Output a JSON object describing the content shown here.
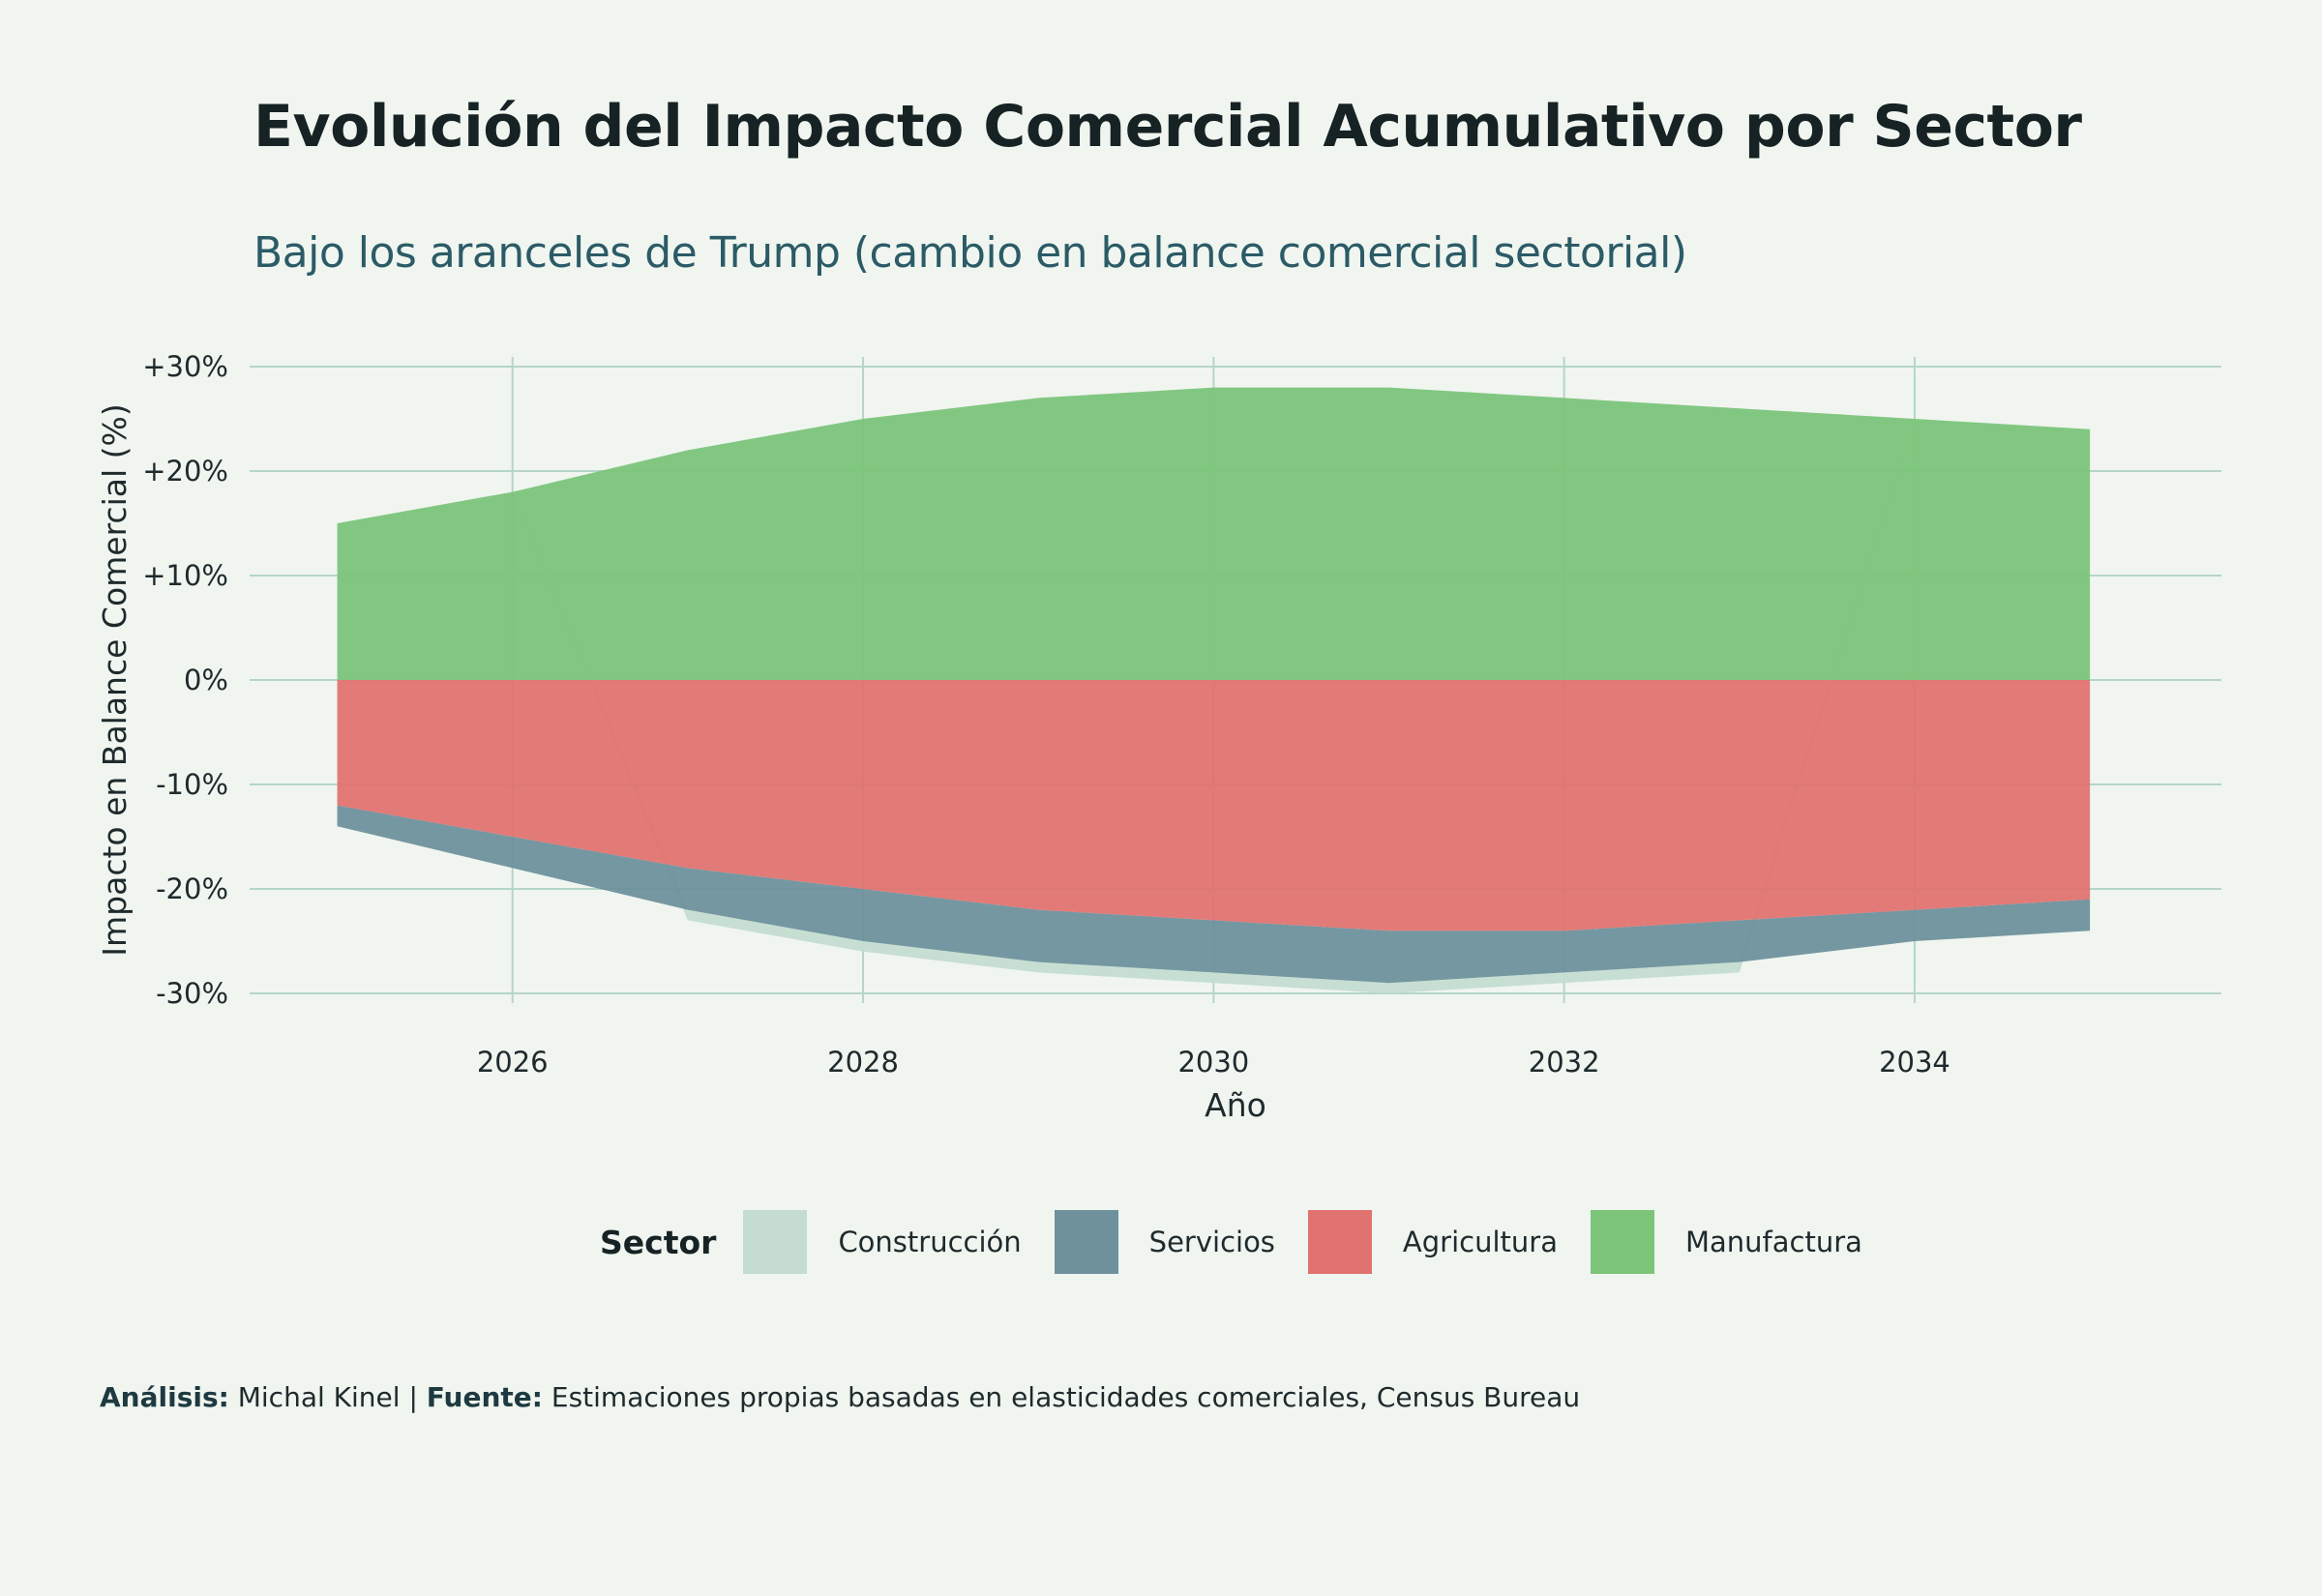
{
  "title": "Evolución del Impacto Comercial Acumulativo por Sector",
  "subtitle": "Bajo los aranceles de Trump (cambio en balance comercial sectorial)",
  "caption": {
    "analysis_label": "Análisis:",
    "analysis_value": "Michal Kinel |",
    "source_label": "Fuente:",
    "source_value": "Estimaciones propias basadas en elasticidades comerciales, Census Bureau"
  },
  "legend": {
    "title": "Sector",
    "items": [
      {
        "label": "Construcción",
        "color": "#c4ddd0"
      },
      {
        "label": "Servicios",
        "color": "#6e919c"
      },
      {
        "label": "Agricultura",
        "color": "#e07370"
      },
      {
        "label": "Manufactura",
        "color": "#7bc47a"
      }
    ]
  },
  "chart_data": {
    "type": "area",
    "stacked": true,
    "title": "Evolución del Impacto Comercial Acumulativo por Sector",
    "subtitle": "Bajo los aranceles de Trump (cambio en balance comercial sectorial)",
    "xlabel": "Año",
    "ylabel": "Impacto en Balance Comercial (%)",
    "x": [
      2025,
      2026,
      2027,
      2028,
      2029,
      2030,
      2031,
      2032,
      2033,
      2034,
      2035
    ],
    "xlim": [
      2024.5,
      2035.75
    ],
    "ylim": [
      -30,
      30
    ],
    "x_ticks": [
      2026,
      2028,
      2030,
      2032,
      2034
    ],
    "y_ticks": [
      30,
      20,
      10,
      0,
      -10,
      -20,
      -30
    ],
    "y_tick_labels": [
      "+30%",
      "+20%",
      "+10%",
      "0%",
      "-10%",
      "-20%",
      "-30%"
    ],
    "grid": true,
    "legend_position": "bottom",
    "series": [
      {
        "name": "Manufactura",
        "color": "#7bc47a",
        "values": [
          15,
          18,
          22,
          25,
          27,
          28,
          28,
          27,
          26,
          25,
          24
        ]
      },
      {
        "name": "Agricultura",
        "color": "#e07370",
        "values": [
          -12,
          -15,
          -18,
          -20,
          -22,
          -23,
          -24,
          -24,
          -23,
          -22,
          -21
        ]
      },
      {
        "name": "Servicios",
        "color": "#6e919c",
        "values": [
          -2,
          -3,
          -4,
          -5,
          -5,
          -5,
          -5,
          -4,
          -4,
          -3,
          -3
        ]
      },
      {
        "name": "Construcción",
        "color": "#c4ddd0",
        "values": [
          0,
          0,
          -1,
          -1,
          -1,
          -1,
          -1,
          -1,
          -1,
          0,
          0
        ]
      }
    ]
  }
}
